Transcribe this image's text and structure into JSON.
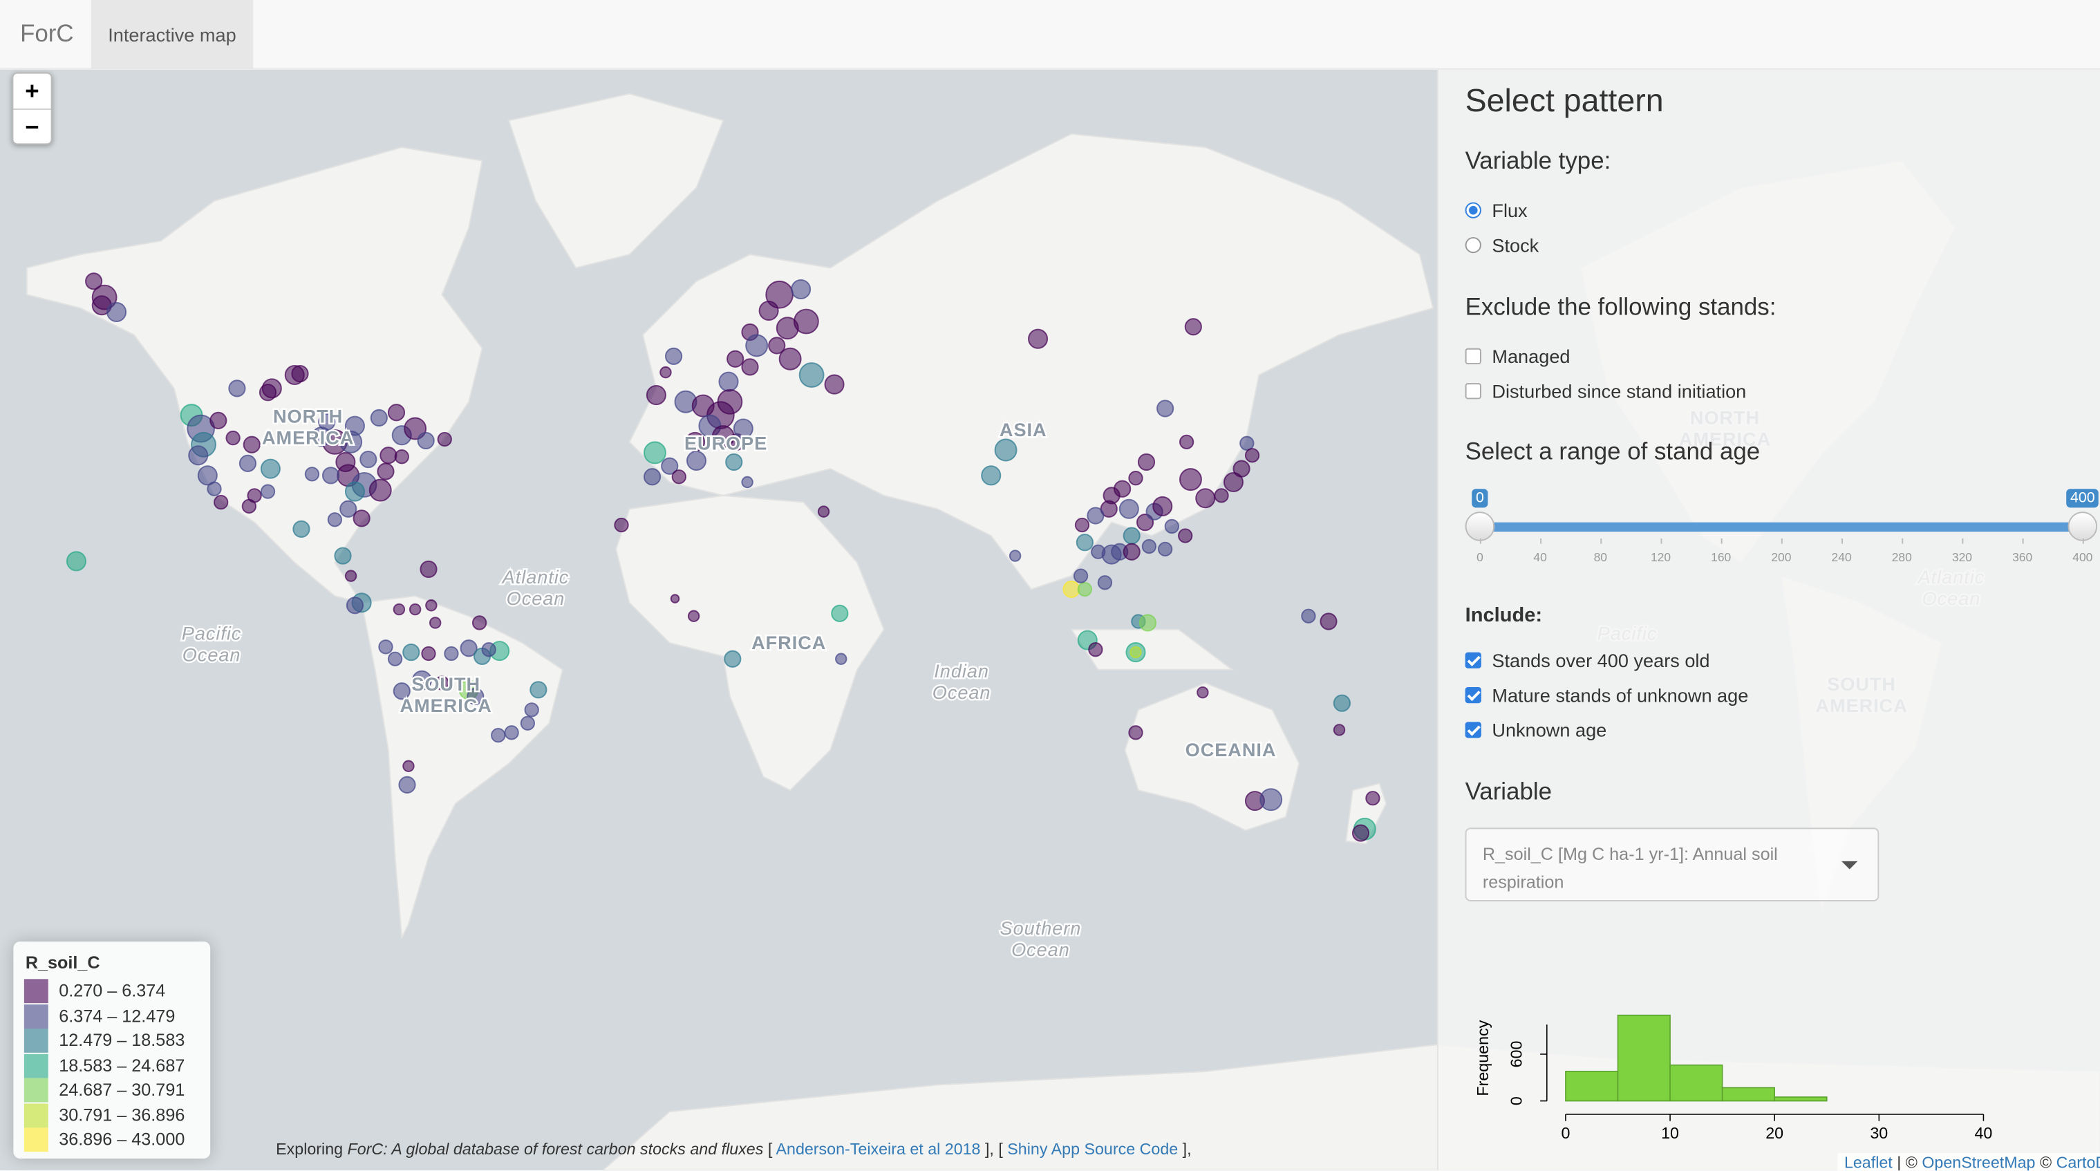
{
  "navbar": {
    "brand": "ForC",
    "tab": "Interactive map"
  },
  "map": {
    "zoom_in": "+",
    "zoom_out": "−",
    "labels": [
      [
        "NORTH",
        "AMERICA"
      ],
      [
        "EUROPE"
      ],
      [
        "ASIA"
      ],
      [
        "AFRICA"
      ],
      [
        "SOUTH",
        "AMERICA"
      ],
      [
        "OCEANIA"
      ],
      [
        "Atlantic",
        "Ocean"
      ],
      [
        "Pacific",
        "Ocean"
      ],
      [
        "Indian",
        "Ocean"
      ],
      [
        "Southern",
        "Ocean"
      ],
      [
        "NORTH",
        "AMERICA"
      ],
      [
        "Atlantic",
        "Ocean"
      ],
      [
        "Pacific"
      ],
      [
        "SOUTH",
        "AMERICA"
      ]
    ],
    "legend": {
      "title": "R_soil_C",
      "items": [
        {
          "label": "0.270 – 6.374",
          "color": "#440154"
        },
        {
          "label": "6.374 – 12.479",
          "color": "#414487"
        },
        {
          "label": "12.479 – 18.583",
          "color": "#2a788e"
        },
        {
          "label": "18.583 – 24.687",
          "color": "#22a884"
        },
        {
          "label": "24.687 – 30.791",
          "color": "#7ad151"
        },
        {
          "label": "30.791 – 36.896",
          "color": "#bddf26"
        },
        {
          "label": "36.896 – 43.000",
          "color": "#fde725"
        }
      ]
    },
    "caption": [
      "Exploring",
      "ForC: A global database of forest carbon stocks and fluxes",
      "[",
      "Anderson-Teixeira et al 2018",
      "], [",
      "Shiny App Source Code",
      "],"
    ],
    "attribution": [
      "Leaflet",
      "| ©",
      "OpenStreetMap",
      "©",
      "CartoDB"
    ]
  },
  "sidebar": {
    "title": "Select pattern",
    "variable_type": {
      "label": "Variable type:",
      "options": [
        "Flux",
        "Stock"
      ],
      "selected": 0
    },
    "exclude": {
      "label": "Exclude the following stands:",
      "options": [
        "Managed",
        "Disturbed since stand initiation"
      ]
    },
    "age_slider": {
      "label": "Select a range of stand age",
      "from": 0,
      "to": 400,
      "ticks": [
        0,
        40,
        80,
        120,
        160,
        200,
        240,
        280,
        320,
        360,
        400
      ]
    },
    "include": {
      "label": "Include:",
      "options": [
        "Stands over 400 years old",
        "Mature stands of unknown age",
        "Unknown age"
      ]
    },
    "variable": {
      "label": "Variable",
      "selected": "R_soil_C [Mg C ha-1 yr-1]: Annual soil respiration"
    }
  },
  "chart_data": {
    "type": "histogram",
    "ylabel": "Frequency",
    "bins": [
      0,
      5,
      10,
      15,
      20,
      25
    ],
    "values": [
      380,
      1100,
      460,
      170,
      50
    ],
    "color": "#7ed13f",
    "xlim": [
      0,
      40
    ],
    "xticks": [
      0,
      10,
      20,
      30,
      40
    ],
    "ylim": [
      0,
      1100
    ],
    "yticks": [
      0,
      600
    ]
  }
}
